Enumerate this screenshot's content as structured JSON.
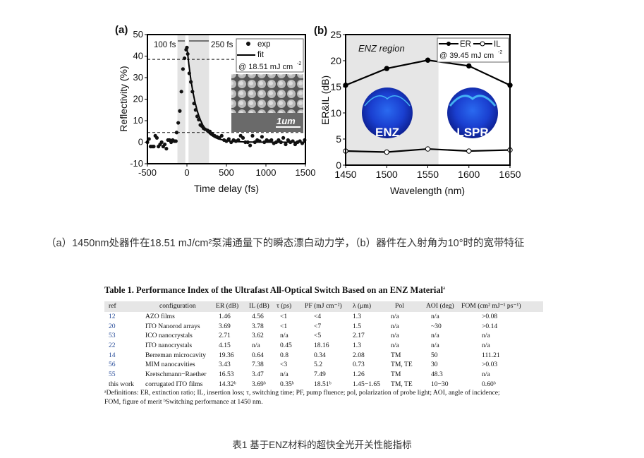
{
  "figure_caption": "（a）1450nm处器件在18.51 mJ/cm²泵浦通量下的瞬态漂白动力学，（b）器件在入射角为10°时的宽带特征",
  "table_caption": "表1 基于ENZ材料的超快全光开关性能指标",
  "chart_data": [
    {
      "panel": "(a)",
      "type": "scatter",
      "xlabel": "Time delay (fs)",
      "ylabel": "Reflectivity (%)",
      "xlim": [
        -500,
        1500
      ],
      "ylim": [
        -10,
        50
      ],
      "xticks": [
        -500,
        0,
        500,
        1000,
        1500
      ],
      "yticks": [
        -10,
        0,
        10,
        20,
        30,
        40,
        50
      ],
      "legend_placement": "top-right",
      "legend": [
        "exp",
        "fit"
      ],
      "legend_note": "@ 18.51 mJ cm",
      "legend_note_sup": "-2",
      "annotations": [
        "100 fs",
        "250 fs"
      ],
      "inset_scale_label": "1um",
      "shaded_ranges": [
        [
          -120,
          -20
        ],
        [
          20,
          280
        ]
      ],
      "dashed_levels": [
        38.5,
        4.5
      ],
      "series": [
        {
          "name": "exp",
          "points": [
            [
              -500,
              0
            ],
            [
              -480,
              1.5
            ],
            [
              -460,
              -2
            ],
            [
              -440,
              -2
            ],
            [
              -420,
              -2
            ],
            [
              -400,
              3
            ],
            [
              -380,
              2
            ],
            [
              -360,
              -2
            ],
            [
              -340,
              -1
            ],
            [
              -320,
              0
            ],
            [
              -300,
              -2
            ],
            [
              -280,
              -1
            ],
            [
              -260,
              -3
            ],
            [
              -240,
              1
            ],
            [
              -220,
              1
            ],
            [
              -200,
              0
            ],
            [
              -180,
              1
            ],
            [
              -160,
              0.5
            ],
            [
              -140,
              0.5
            ],
            [
              -130,
              4.5
            ],
            [
              -110,
              9
            ],
            [
              -90,
              14.5
            ],
            [
              -70,
              23.5
            ],
            [
              -50,
              34
            ],
            [
              -30,
              39
            ],
            [
              -10,
              43
            ],
            [
              0,
              44
            ],
            [
              10,
              41
            ],
            [
              30,
              32
            ],
            [
              50,
              28
            ],
            [
              70,
              23.5
            ],
            [
              90,
              18
            ],
            [
              110,
              15
            ],
            [
              130,
              12
            ],
            [
              150,
              10.5
            ],
            [
              170,
              8
            ],
            [
              190,
              7.5
            ],
            [
              210,
              6.5
            ],
            [
              230,
              6
            ],
            [
              260,
              5.5
            ],
            [
              290,
              5
            ],
            [
              320,
              4
            ],
            [
              350,
              3
            ],
            [
              380,
              2.5
            ],
            [
              410,
              2
            ],
            [
              440,
              3
            ],
            [
              470,
              1
            ],
            [
              500,
              0.5
            ],
            [
              530,
              1.5
            ],
            [
              560,
              0
            ],
            [
              590,
              1
            ],
            [
              620,
              0.5
            ],
            [
              650,
              1
            ],
            [
              680,
              3
            ],
            [
              710,
              2
            ],
            [
              740,
              0
            ],
            [
              770,
              0
            ],
            [
              800,
              -1.5
            ],
            [
              830,
              3
            ],
            [
              860,
              0
            ],
            [
              890,
              1
            ],
            [
              920,
              0.5
            ],
            [
              950,
              2.5
            ],
            [
              980,
              0
            ],
            [
              1010,
              1
            ],
            [
              1040,
              0.5
            ],
            [
              1070,
              1
            ],
            [
              1100,
              -0.5
            ],
            [
              1130,
              0
            ],
            [
              1160,
              1
            ],
            [
              1190,
              0
            ],
            [
              1220,
              2
            ],
            [
              1250,
              -1
            ],
            [
              1280,
              1
            ],
            [
              1310,
              0
            ],
            [
              1340,
              0.5
            ],
            [
              1370,
              -1
            ],
            [
              1400,
              0
            ],
            [
              1430,
              0.5
            ],
            [
              1460,
              -0.5
            ],
            [
              1490,
              1
            ]
          ]
        },
        {
          "name": "fit",
          "points": [
            [
              0,
              44
            ],
            [
              25,
              36
            ],
            [
              50,
              29
            ],
            [
              75,
              23.5
            ],
            [
              100,
              19
            ],
            [
              125,
              15.3
            ],
            [
              150,
              12.3
            ],
            [
              175,
              10
            ],
            [
              200,
              8
            ],
            [
              250,
              5.3
            ],
            [
              300,
              3.5
            ],
            [
              350,
              2.3
            ],
            [
              400,
              1.5
            ],
            [
              500,
              0.7
            ],
            [
              600,
              0.3
            ],
            [
              800,
              0.1
            ],
            [
              1000,
              0
            ],
            [
              1500,
              0
            ]
          ]
        }
      ]
    },
    {
      "panel": "(b)",
      "type": "line",
      "xlabel": "Wavelength (nm)",
      "ylabel": "ER&IL (dB)",
      "xlim": [
        1450,
        1650
      ],
      "ylim": [
        0,
        25
      ],
      "xticks": [
        1450,
        1500,
        1550,
        1600,
        1650
      ],
      "yticks": [
        0,
        5,
        10,
        15,
        20,
        25
      ],
      "legend_placement": "top-right",
      "legend_note": "@ 39.45 mJ cm",
      "legend_note_sup": "-2",
      "region_label": "ENZ region",
      "shaded_range": [
        1450,
        1563
      ],
      "inset_labels": [
        "ENZ",
        "LSPR"
      ],
      "x": [
        1450,
        1500,
        1550,
        1600,
        1650
      ],
      "series": [
        {
          "name": "ER",
          "values": [
            15.3,
            18.5,
            20.1,
            19.0,
            15.3
          ],
          "marker": "filled"
        },
        {
          "name": "IL",
          "values": [
            2.7,
            2.5,
            3.1,
            2.7,
            2.9
          ],
          "marker": "open"
        }
      ]
    }
  ],
  "table": {
    "title": "Table 1. Performance Index of the Ultrafast All-Optical Switch Based on an ENZ Material",
    "title_sup": "a",
    "headers": [
      "ref",
      "configuration",
      "ER (dB)",
      "IL (dB)",
      "τ (ps)",
      "PF (mJ cm⁻²)",
      "λ (μm)",
      "Pol",
      "AOI (deg)",
      "FOM (cm² mJ⁻¹ ps⁻¹)"
    ],
    "rows": [
      [
        "12",
        "AZO films",
        "1.46",
        "4.56",
        "<1",
        "<4",
        "1.3",
        "n/a",
        "n/a",
        ">0.08"
      ],
      [
        "20",
        "ITO Nanorod arrays",
        "3.69",
        "3.78",
        "<1",
        "<7",
        "1.5",
        "n/a",
        "~30",
        ">0.14"
      ],
      [
        "53",
        "ICO nanocrystals",
        "2.71",
        "3.62",
        "n/a",
        "<5",
        "2.17",
        "n/a",
        "n/a",
        "n/a"
      ],
      [
        "22",
        "ITO nanocrystals",
        "4.15",
        "n/a",
        "0.45",
        "18.16",
        "1.3",
        "n/a",
        "n/a",
        "n/a"
      ],
      [
        "14",
        "Berreman microcavity",
        "19.36",
        "0.64",
        "0.8",
        "0.34",
        "2.08",
        "TM",
        "50",
        "111.21"
      ],
      [
        "56",
        "MIM nanocavities",
        "3.43",
        "7.38",
        "<3",
        "5.2",
        "0.73",
        "TM, TE",
        "30",
        ">0.03"
      ],
      [
        "55",
        "Kretschmann−Raether",
        "16.53",
        "3.47",
        "n/a",
        "7.49",
        "1.26",
        "TM",
        "48.3",
        "n/a"
      ],
      [
        "this work",
        "corrugated ITO films",
        "14.32ᵇ",
        "3.69ᵇ",
        "0.35ᵇ",
        "18.51ᵇ",
        "1.45−1.65",
        "TM, TE",
        "10−30",
        "0.60ᵇ"
      ]
    ],
    "footnote_a": "ᵃDefinitions: ER, extinction ratio; IL, insertion loss; τ, switching time; PF, pump fluence; pol, polarization of probe light; AOI, angle of incidence;",
    "footnote_b": "FOM, figure of merit ᵇSwitching performance at 1450 nm."
  }
}
